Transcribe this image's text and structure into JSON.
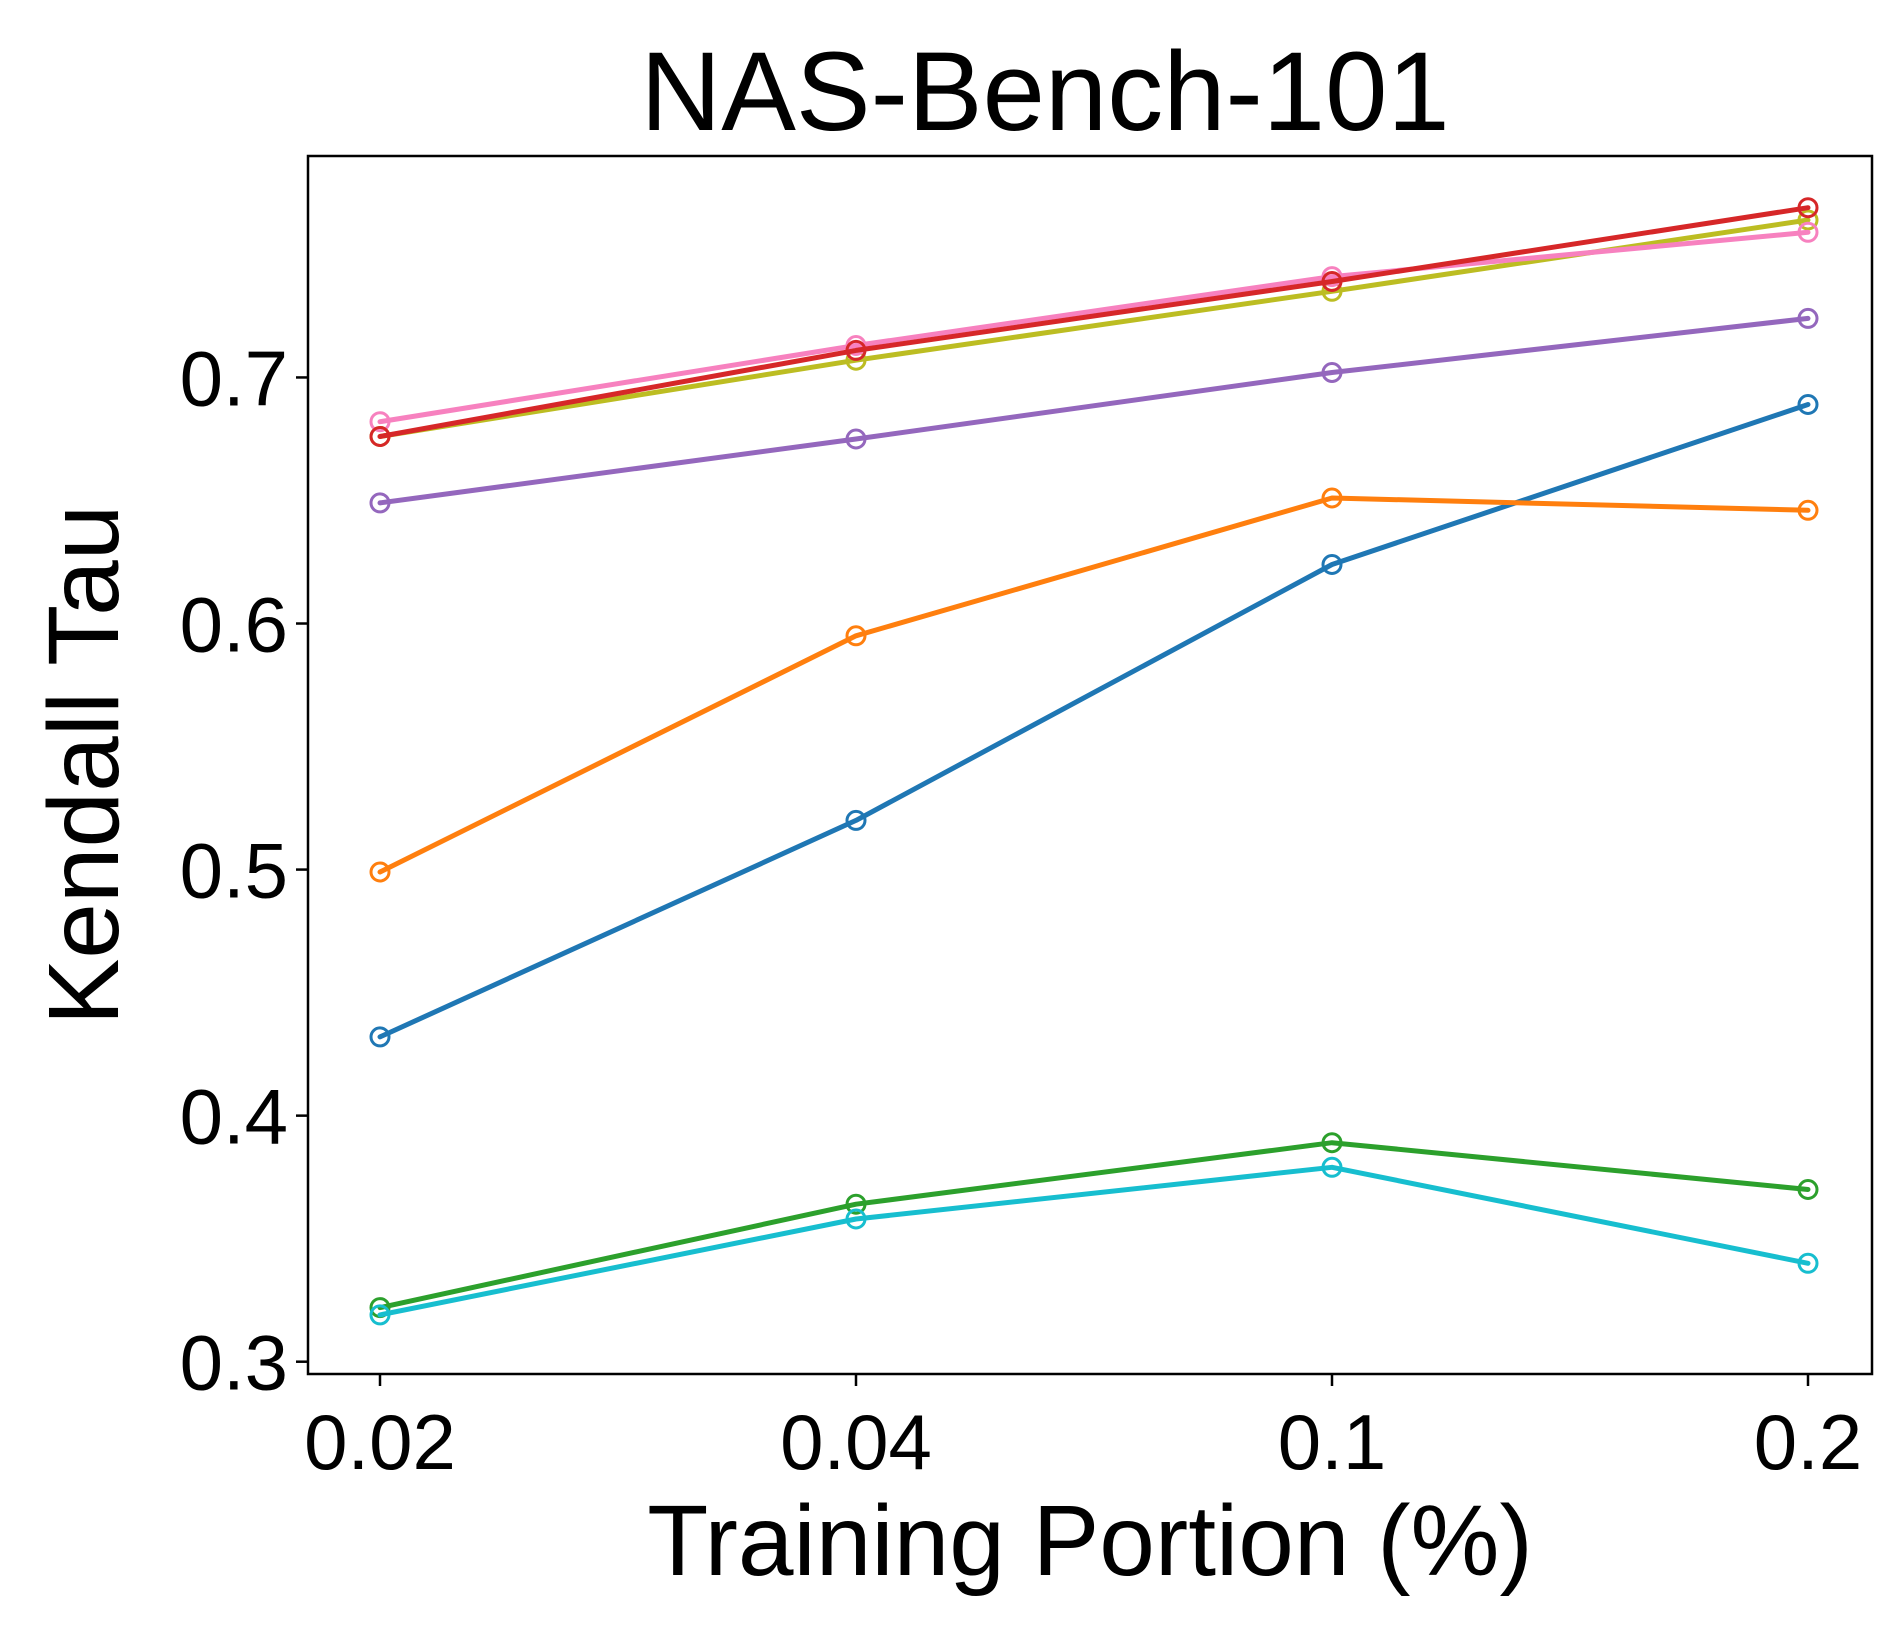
{
  "chart_data": {
    "type": "line",
    "title": "NAS-Bench-101",
    "xlabel": "Training Portion (%)",
    "ylabel": "Kendall Tau",
    "categories": [
      "0.02",
      "0.04",
      "0.1",
      "0.2"
    ],
    "yticks": [
      "0.3",
      "0.4",
      "0.5",
      "0.6",
      "0.7"
    ],
    "ylim": [
      0.295,
      0.79
    ],
    "grid": false,
    "marker": "hollow-circle",
    "series": [
      {
        "name": "blue",
        "color": "#1f77b4",
        "values": [
          0.432,
          0.52,
          0.624,
          0.689
        ]
      },
      {
        "name": "orange",
        "color": "#ff7f0e",
        "values": [
          0.499,
          0.595,
          0.651,
          0.646
        ]
      },
      {
        "name": "green",
        "color": "#2ca02c",
        "values": [
          0.322,
          0.364,
          0.389,
          0.37
        ]
      },
      {
        "name": "cyan",
        "color": "#17becf",
        "values": [
          0.319,
          0.358,
          0.379,
          0.34
        ]
      },
      {
        "name": "purple",
        "color": "#9467bd",
        "values": [
          0.649,
          0.675,
          0.702,
          0.724
        ]
      },
      {
        "name": "olive",
        "color": "#bcbd22",
        "values": [
          0.676,
          0.707,
          0.735,
          0.764
        ]
      },
      {
        "name": "pink",
        "color": "#f781bf",
        "values": [
          0.682,
          0.713,
          0.741,
          0.759
        ]
      },
      {
        "name": "red",
        "color": "#d62728",
        "values": [
          0.676,
          0.711,
          0.739,
          0.769
        ]
      }
    ]
  }
}
